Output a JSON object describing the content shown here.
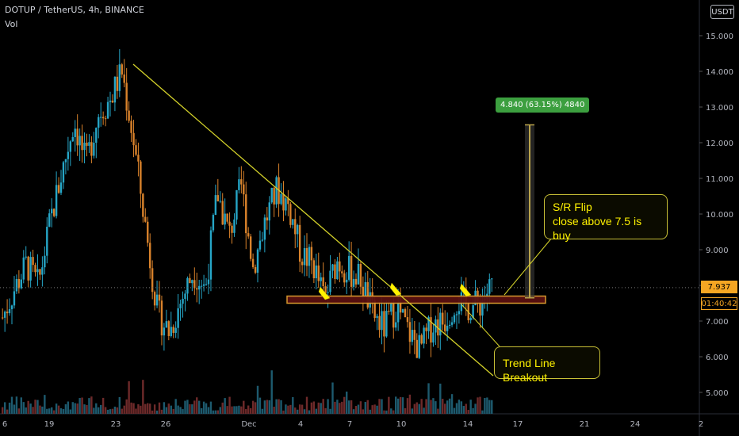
{
  "header": {
    "symbol_line": "DOTUP / TetherUS, 4h, BINANCE",
    "indicator": "Vol"
  },
  "currency_badge": "USDT",
  "price_tags": {
    "last_price": "7.937",
    "countdown": "01:40:42"
  },
  "annotations": {
    "sr_flip_title": "S/R Flip",
    "sr_flip_text": "close above 7.5 is buy",
    "trendline_label": "Trend Line Breakout",
    "measure_label": "4.840 (63.15%) 4840"
  },
  "colors": {
    "bull": "#26a6c7",
    "bear": "#d9822b",
    "trendline": "#d4d22a",
    "zone_fill": "#5a1010",
    "zone_stroke": "#e0a030",
    "measure": "#b8a24a",
    "vol_bull": "#1d5a6e",
    "vol_bear": "#6e2a2a"
  },
  "chart_data": {
    "type": "candlestick",
    "price_axis": {
      "ticks": [
        "15.000",
        "14.000",
        "13.000",
        "12.000",
        "11.000",
        "10.000",
        "9.000",
        "8.000",
        "7.000",
        "6.000",
        "5.000"
      ],
      "ylim": [
        4.6,
        15.8
      ]
    },
    "time_axis": {
      "ticks": [
        "6",
        "19",
        "23",
        "26",
        "Dec",
        "4",
        "7",
        "10",
        "14",
        "17",
        "21",
        "24",
        "2"
      ]
    },
    "price_path": [
      [
        0,
        7.1
      ],
      [
        2,
        7.9
      ],
      [
        4,
        8.6
      ],
      [
        6,
        8.0
      ],
      [
        8,
        9.8
      ],
      [
        10,
        11.2
      ],
      [
        12,
        12.6
      ],
      [
        14,
        11.4
      ],
      [
        16,
        12.8
      ],
      [
        18,
        13.2
      ],
      [
        20,
        14.0
      ],
      [
        22,
        12.0
      ],
      [
        24,
        9.6
      ],
      [
        26,
        7.2
      ],
      [
        28,
        6.7
      ],
      [
        30,
        7.6
      ],
      [
        32,
        8.4
      ],
      [
        34,
        7.9
      ],
      [
        36,
        10.6
      ],
      [
        38,
        9.4
      ],
      [
        40,
        10.8
      ],
      [
        42,
        8.5
      ],
      [
        44,
        9.8
      ],
      [
        46,
        10.7
      ],
      [
        48,
        10.2
      ],
      [
        50,
        8.9
      ],
      [
        52,
        8.6
      ],
      [
        54,
        7.6
      ],
      [
        56,
        8.7
      ],
      [
        58,
        8.4
      ],
      [
        60,
        8.2
      ],
      [
        62,
        7.2
      ],
      [
        64,
        6.8
      ],
      [
        66,
        7.4
      ],
      [
        68,
        6.7
      ],
      [
        70,
        6.2
      ],
      [
        72,
        6.9
      ],
      [
        74,
        7.0
      ],
      [
        76,
        7.6
      ],
      [
        78,
        7.4
      ],
      [
        80,
        7.5
      ],
      [
        82,
        8.0
      ]
    ],
    "trendline": {
      "from_price": 14.2,
      "to_price": 6.8
    },
    "sr_zone": {
      "low": 7.5,
      "high": 7.7
    },
    "measure": {
      "from": 7.65,
      "to": 12.5,
      "change": 4.84,
      "percent": 63.15
    },
    "last_price": 7.937,
    "grid": false
  }
}
